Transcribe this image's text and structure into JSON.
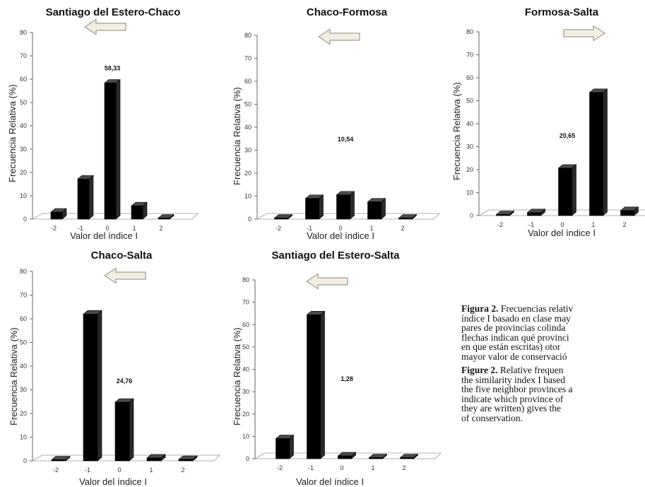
{
  "figure": {
    "caption_es_label": "Figura 2.",
    "caption_es_lines": [
      "Frecuencias relativ",
      "índice I basado en clase may",
      "pares de provincias colinda",
      "flechas indican qué provinci",
      "en que están escritas) otor",
      "mayor valor de conservació"
    ],
    "caption_en_label": "Figure 2.",
    "caption_en_lines": [
      "Relative frequen",
      "the similarity index I based",
      "the five neighbor provinces a",
      "indicate which province of",
      "they are written) gives the",
      "of conservation."
    ]
  },
  "chart_data": [
    {
      "type": "bar",
      "title": "Santiago del Estero-Chaco",
      "xlabel": "Valor del índice I",
      "ylabel": "Frecuencia Relativa (%)",
      "categories": [
        "-2",
        "-1",
        "0",
        "1",
        "2"
      ],
      "values": [
        3.0,
        17.2,
        58.33,
        5.7,
        0.2
      ],
      "data_label": "58,33",
      "labeled_index": 2,
      "ylim": [
        0,
        80
      ],
      "yticks": [
        "0",
        "10",
        "20",
        "30",
        "40",
        "50",
        "60",
        "70",
        "80"
      ],
      "arrow": "left",
      "grid": false
    },
    {
      "type": "bar",
      "title": "Chaco-Formosa",
      "xlabel": "Valor del índice I",
      "ylabel": "Frecuencia Relativa (%)",
      "categories": [
        "-2",
        "-1",
        "0",
        "1",
        "2"
      ],
      "values": [
        0.3,
        9.0,
        10.54,
        7.5,
        0.3
      ],
      "data_label": "10,54",
      "labeled_index": 2,
      "ylim": [
        0,
        80
      ],
      "yticks": [
        "0",
        "10",
        "20",
        "30",
        "40",
        "50",
        "60",
        "70",
        "80"
      ],
      "arrow": "left",
      "grid": false
    },
    {
      "type": "bar",
      "title": "Formosa-Salta",
      "xlabel": "Valor del índice I",
      "ylabel": "Frecuencia Relativa (%)",
      "categories": [
        "-2",
        "-1",
        "0",
        "1",
        "2"
      ],
      "values": [
        0.3,
        1.3,
        20.65,
        53.6,
        2.2
      ],
      "data_label": "20,65",
      "labeled_index": 2,
      "ylim": [
        0,
        80
      ],
      "yticks": [
        "0",
        "10",
        "20",
        "30",
        "40",
        "50",
        "60",
        "70",
        "80"
      ],
      "arrow": "right",
      "grid": false
    },
    {
      "type": "bar",
      "title": "Chaco-Salta",
      "xlabel": "Valor del índice I",
      "ylabel": "Frecuencia Relativa (%)",
      "categories": [
        "-2",
        "-1",
        "0",
        "1",
        "2"
      ],
      "values": [
        0.2,
        62.0,
        24.76,
        1.2,
        0.6
      ],
      "data_label": "24,76",
      "labeled_index": 2,
      "ylim": [
        0,
        80
      ],
      "yticks": [
        "0",
        "10",
        "20",
        "30",
        "40",
        "50",
        "60",
        "70",
        "80"
      ],
      "arrow": "left",
      "grid": false
    },
    {
      "type": "bar",
      "title": "Santiago del Estero-Salta",
      "xlabel": "Valor del índice I",
      "ylabel": "Frecuencia Relativa (%)",
      "categories": [
        "-2",
        "-1",
        "0",
        "1",
        "2"
      ],
      "values": [
        9.0,
        64.4,
        1.28,
        0.3,
        0.2
      ],
      "data_label": "1,28",
      "labeled_index": 2,
      "ylim": [
        0,
        80
      ],
      "yticks": [
        "0",
        "10",
        "20",
        "30",
        "40",
        "50",
        "60",
        "70",
        "80"
      ],
      "arrow": "left",
      "grid": false
    }
  ]
}
